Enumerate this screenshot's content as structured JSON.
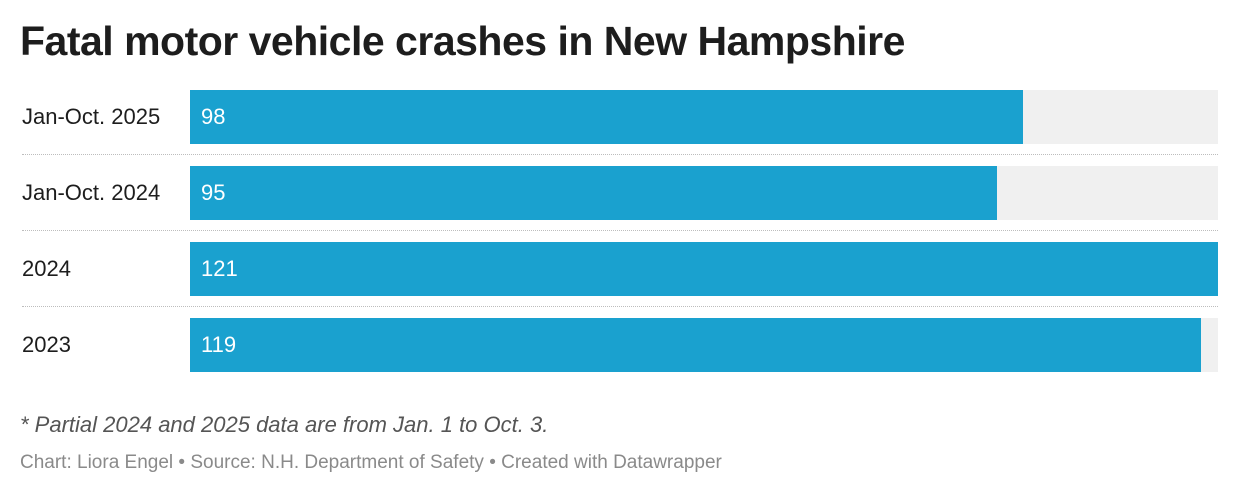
{
  "chart_data": {
    "type": "bar",
    "orientation": "horizontal",
    "title": "Fatal motor vehicle crashes in New Hampshire",
    "categories": [
      "Jan-Oct. 2025",
      "Jan-Oct. 2024",
      "2024",
      "2023"
    ],
    "values": [
      98,
      95,
      121,
      119
    ],
    "value_labels": [
      "98",
      "95",
      "121",
      "119"
    ],
    "xlim": [
      0,
      121
    ],
    "grid": false,
    "bar_color": "#1aa1cf",
    "track_color": "#f0f0f0"
  },
  "footer": {
    "note": "* Partial 2024 and 2025 data are from Jan. 1 to Oct. 3.",
    "credit": "Chart: Liora Engel • Source: N.H. Department of Safety • Created with Datawrapper"
  }
}
